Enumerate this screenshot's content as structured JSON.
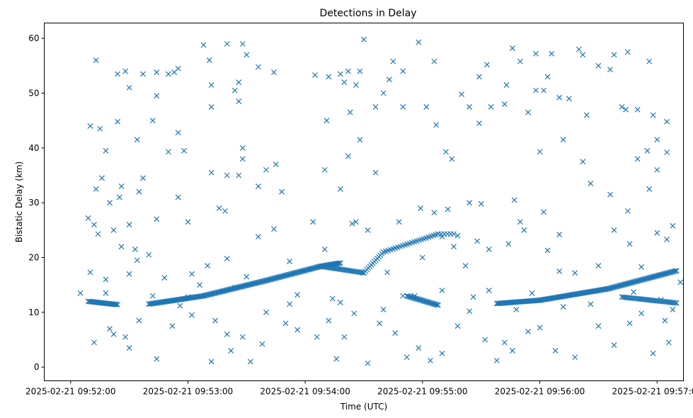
{
  "chart_data": {
    "type": "scatter",
    "title": "Detections in Delay",
    "xlabel": "Time (UTC)",
    "ylabel": "Bistatic Delay (km)",
    "x_unit": "seconds after 2025-02-21 09:52:00",
    "xlim": [
      -13.5,
      313.5
    ],
    "ylim": [
      -2.5,
      62.8
    ],
    "xticks": [
      {
        "value": 0,
        "label": "2025-02-21 09:52:00"
      },
      {
        "value": 60,
        "label": "2025-02-21 09:53:00"
      },
      {
        "value": 120,
        "label": "2025-02-21 09:54:00"
      },
      {
        "value": 180,
        "label": "2025-02-21 09:55:00"
      },
      {
        "value": 240,
        "label": "2025-02-21 09:56:00"
      },
      {
        "value": 300,
        "label": "2025-02-21 09:57:00"
      }
    ],
    "yticks": [
      0,
      10,
      20,
      30,
      40,
      50,
      60
    ],
    "marker": "x",
    "color": "#1f77b4",
    "tracks": [
      {
        "name": "track-a",
        "x_start": 9,
        "x_end": 24,
        "y_start": 12.0,
        "y_end": 11.4,
        "step": 0.6
      },
      {
        "name": "track-b",
        "x_start": 40,
        "x_end": 68,
        "y_start": 11.5,
        "y_end": 13.0,
        "step": 0.6
      },
      {
        "name": "track-c",
        "x_start": 68,
        "x_end": 100,
        "y_start": 13.0,
        "y_end": 15.8,
        "step": 0.6
      },
      {
        "name": "track-d",
        "x_start": 100,
        "x_end": 128,
        "y_start": 15.8,
        "y_end": 18.4,
        "step": 0.6
      },
      {
        "name": "track-e",
        "x_start": 128,
        "x_end": 138,
        "y_start": 18.4,
        "y_end": 19.0,
        "step": 0.6
      },
      {
        "name": "track-f",
        "x_start": 128,
        "x_end": 150,
        "y_start": 18.4,
        "y_end": 17.2,
        "step": 0.8
      },
      {
        "name": "track-g",
        "x_start": 150,
        "x_end": 160,
        "y_start": 17.2,
        "y_end": 21.0,
        "step": 0.8
      },
      {
        "name": "track-h",
        "x_start": 160,
        "x_end": 188,
        "y_start": 21.0,
        "y_end": 24.3,
        "step": 1.2
      },
      {
        "name": "track-i",
        "x_start": 172,
        "x_end": 188,
        "y_start": 13.0,
        "y_end": 11.3,
        "step": 0.6
      },
      {
        "name": "track-j",
        "x_start": 188,
        "x_end": 196,
        "y_start": 24.3,
        "y_end": 24.3,
        "step": 1.5
      },
      {
        "name": "track-k",
        "x_start": 218,
        "x_end": 240,
        "y_start": 11.6,
        "y_end": 12.2,
        "step": 0.6
      },
      {
        "name": "track-l",
        "x_start": 240,
        "x_end": 275,
        "y_start": 12.2,
        "y_end": 14.3,
        "step": 0.6
      },
      {
        "name": "track-m",
        "x_start": 275,
        "x_end": 310,
        "y_start": 14.3,
        "y_end": 17.6,
        "step": 0.6
      },
      {
        "name": "track-n",
        "x_start": 282,
        "x_end": 310,
        "y_start": 12.8,
        "y_end": 11.7,
        "step": 0.8
      }
    ],
    "scattered_points": [
      [
        13,
        56
      ],
      [
        24,
        53.5
      ],
      [
        28,
        54
      ],
      [
        37,
        53.5
      ],
      [
        44,
        53.8
      ],
      [
        50,
        53.5
      ],
      [
        53,
        53.8
      ],
      [
        55,
        54.5
      ],
      [
        68,
        58.8
      ],
      [
        71,
        56
      ],
      [
        72,
        51.5
      ],
      [
        80,
        59
      ],
      [
        84,
        50.5
      ],
      [
        86,
        52
      ],
      [
        88,
        59
      ],
      [
        90,
        57
      ],
      [
        96,
        54.8
      ],
      [
        104,
        53.8
      ],
      [
        132,
        53
      ],
      [
        138,
        53.5
      ],
      [
        140,
        52
      ],
      [
        142,
        54
      ],
      [
        146,
        51.5
      ],
      [
        148,
        54
      ],
      [
        150,
        59.8
      ],
      [
        160,
        50
      ],
      [
        163,
        52.5
      ],
      [
        165,
        55.8
      ],
      [
        170,
        54
      ],
      [
        178,
        59.3
      ],
      [
        186,
        55.8
      ],
      [
        200,
        49.8
      ],
      [
        209,
        53
      ],
      [
        213,
        55.2
      ],
      [
        223,
        51.5
      ],
      [
        226,
        58.2
      ],
      [
        230,
        55.8
      ],
      [
        238,
        57.2
      ],
      [
        242,
        50.5
      ],
      [
        246,
        57.2
      ],
      [
        250,
        49.2
      ],
      [
        255,
        49
      ],
      [
        260,
        58
      ],
      [
        262,
        57
      ],
      [
        270,
        55
      ],
      [
        276,
        54.3
      ],
      [
        278,
        57
      ],
      [
        285,
        57.5
      ],
      [
        290,
        47
      ],
      [
        296,
        55.8
      ],
      [
        305,
        44.8
      ],
      [
        10,
        44
      ],
      [
        15,
        43.5
      ],
      [
        18,
        39.5
      ],
      [
        24,
        44.8
      ],
      [
        30,
        51
      ],
      [
        34,
        41.5
      ],
      [
        42,
        45
      ],
      [
        44,
        49.5
      ],
      [
        50,
        39.3
      ],
      [
        55,
        42.8
      ],
      [
        58,
        39.5
      ],
      [
        72,
        47.5
      ],
      [
        86,
        48.5
      ],
      [
        88,
        40
      ],
      [
        125,
        53.3
      ],
      [
        131,
        45
      ],
      [
        143,
        46.5
      ],
      [
        148,
        41.5
      ],
      [
        156,
        47.5
      ],
      [
        170,
        47.5
      ],
      [
        182,
        47.5
      ],
      [
        187,
        44.2
      ],
      [
        192,
        39.3
      ],
      [
        195,
        38
      ],
      [
        204,
        47.5
      ],
      [
        209,
        44.5
      ],
      [
        215,
        47.5
      ],
      [
        222,
        48
      ],
      [
        234,
        46.5
      ],
      [
        238,
        50.5
      ],
      [
        240,
        39.3
      ],
      [
        244,
        53
      ],
      [
        252,
        41.5
      ],
      [
        264,
        46
      ],
      [
        282,
        47.5
      ],
      [
        284,
        47
      ],
      [
        295,
        39.5
      ],
      [
        298,
        46
      ],
      [
        300,
        41.5
      ],
      [
        13,
        32.5
      ],
      [
        16,
        34.5
      ],
      [
        20,
        30
      ],
      [
        25,
        31
      ],
      [
        26,
        33
      ],
      [
        30,
        26
      ],
      [
        33,
        21.5
      ],
      [
        35,
        32
      ],
      [
        37,
        34.5
      ],
      [
        44,
        27
      ],
      [
        55,
        31
      ],
      [
        60,
        26.5
      ],
      [
        72,
        35.5
      ],
      [
        76,
        29
      ],
      [
        79,
        28.5
      ],
      [
        80,
        35
      ],
      [
        86,
        35
      ],
      [
        88,
        38
      ],
      [
        96,
        33
      ],
      [
        100,
        36
      ],
      [
        105,
        37
      ],
      [
        108,
        32
      ],
      [
        130,
        36
      ],
      [
        138,
        32.5
      ],
      [
        142,
        38.5
      ],
      [
        146,
        26.5
      ],
      [
        156,
        35.5
      ],
      [
        168,
        26.5
      ],
      [
        179,
        29
      ],
      [
        186,
        28.2
      ],
      [
        193,
        28.8
      ],
      [
        198,
        24
      ],
      [
        204,
        30
      ],
      [
        210,
        29.8
      ],
      [
        227,
        30.5
      ],
      [
        230,
        26.5
      ],
      [
        242,
        28.3
      ],
      [
        250,
        24.2
      ],
      [
        262,
        37.5
      ],
      [
        266,
        33.5
      ],
      [
        276,
        31.5
      ],
      [
        285,
        28.5
      ],
      [
        290,
        38
      ],
      [
        296,
        32.5
      ],
      [
        300,
        36
      ],
      [
        305,
        39.2
      ],
      [
        9,
        27.2
      ],
      [
        10,
        17.3
      ],
      [
        12,
        26
      ],
      [
        14,
        24.3
      ],
      [
        18,
        16
      ],
      [
        22,
        25
      ],
      [
        26,
        22
      ],
      [
        30,
        17
      ],
      [
        34,
        19.5
      ],
      [
        40,
        20.5
      ],
      [
        48,
        16.3
      ],
      [
        62,
        17
      ],
      [
        66,
        15
      ],
      [
        70,
        18.5
      ],
      [
        80,
        19.8
      ],
      [
        90,
        16.5
      ],
      [
        96,
        23.8
      ],
      [
        104,
        25.2
      ],
      [
        112,
        19.3
      ],
      [
        124,
        26.5
      ],
      [
        130,
        21.5
      ],
      [
        134,
        12.5
      ],
      [
        144,
        26.2
      ],
      [
        152,
        25
      ],
      [
        162,
        17.3
      ],
      [
        170,
        13
      ],
      [
        180,
        20
      ],
      [
        190,
        23.8
      ],
      [
        196,
        22
      ],
      [
        202,
        18.5
      ],
      [
        208,
        23
      ],
      [
        214,
        21.5
      ],
      [
        224,
        22.5
      ],
      [
        232,
        25
      ],
      [
        244,
        21.3
      ],
      [
        250,
        17.5
      ],
      [
        258,
        17.2
      ],
      [
        270,
        18.5
      ],
      [
        278,
        25
      ],
      [
        286,
        22.5
      ],
      [
        292,
        18.3
      ],
      [
        300,
        24.5
      ],
      [
        305,
        23.3
      ],
      [
        308,
        25.8
      ],
      [
        12,
        4.5
      ],
      [
        20,
        7
      ],
      [
        22,
        6
      ],
      [
        28,
        5.5
      ],
      [
        30,
        3.5
      ],
      [
        35,
        8.5
      ],
      [
        44,
        1.5
      ],
      [
        52,
        7.5
      ],
      [
        56,
        11.2
      ],
      [
        62,
        9.5
      ],
      [
        72,
        1
      ],
      [
        74,
        8.5
      ],
      [
        80,
        6
      ],
      [
        82,
        3
      ],
      [
        88,
        5.5
      ],
      [
        92,
        1
      ],
      [
        98,
        4.2
      ],
      [
        100,
        10
      ],
      [
        110,
        8
      ],
      [
        116,
        6.8
      ],
      [
        126,
        5.5
      ],
      [
        132,
        8.5
      ],
      [
        136,
        1.5
      ],
      [
        140,
        5.5
      ],
      [
        145,
        9.8
      ],
      [
        152,
        0.7
      ],
      [
        158,
        8
      ],
      [
        166,
        6.2
      ],
      [
        172,
        1.8
      ],
      [
        178,
        3.5
      ],
      [
        184,
        1.2
      ],
      [
        190,
        2.5
      ],
      [
        198,
        7.5
      ],
      [
        204,
        10.2
      ],
      [
        212,
        5
      ],
      [
        218,
        1.2
      ],
      [
        222,
        4.5
      ],
      [
        226,
        3
      ],
      [
        234,
        6.5
      ],
      [
        240,
        7.2
      ],
      [
        248,
        3
      ],
      [
        258,
        1.8
      ],
      [
        270,
        7.5
      ],
      [
        278,
        4
      ],
      [
        286,
        8
      ],
      [
        292,
        9.8
      ],
      [
        298,
        2.5
      ],
      [
        304,
        8.5
      ],
      [
        306,
        4.5
      ],
      [
        312,
        15.5
      ],
      [
        308,
        10.5
      ],
      [
        5,
        13.5
      ],
      [
        18,
        13.5
      ],
      [
        42,
        13
      ],
      [
        60,
        12.8
      ],
      [
        84,
        14.5
      ],
      [
        112,
        11.5
      ],
      [
        116,
        13.2
      ],
      [
        138,
        11.8
      ],
      [
        160,
        10.5
      ],
      [
        176,
        13
      ],
      [
        190,
        14
      ],
      [
        206,
        12.8
      ],
      [
        214,
        14
      ],
      [
        228,
        10.5
      ],
      [
        236,
        13.5
      ],
      [
        252,
        11
      ],
      [
        266,
        11.5
      ],
      [
        288,
        13.7
      ],
      [
        302,
        12.3
      ]
    ]
  }
}
